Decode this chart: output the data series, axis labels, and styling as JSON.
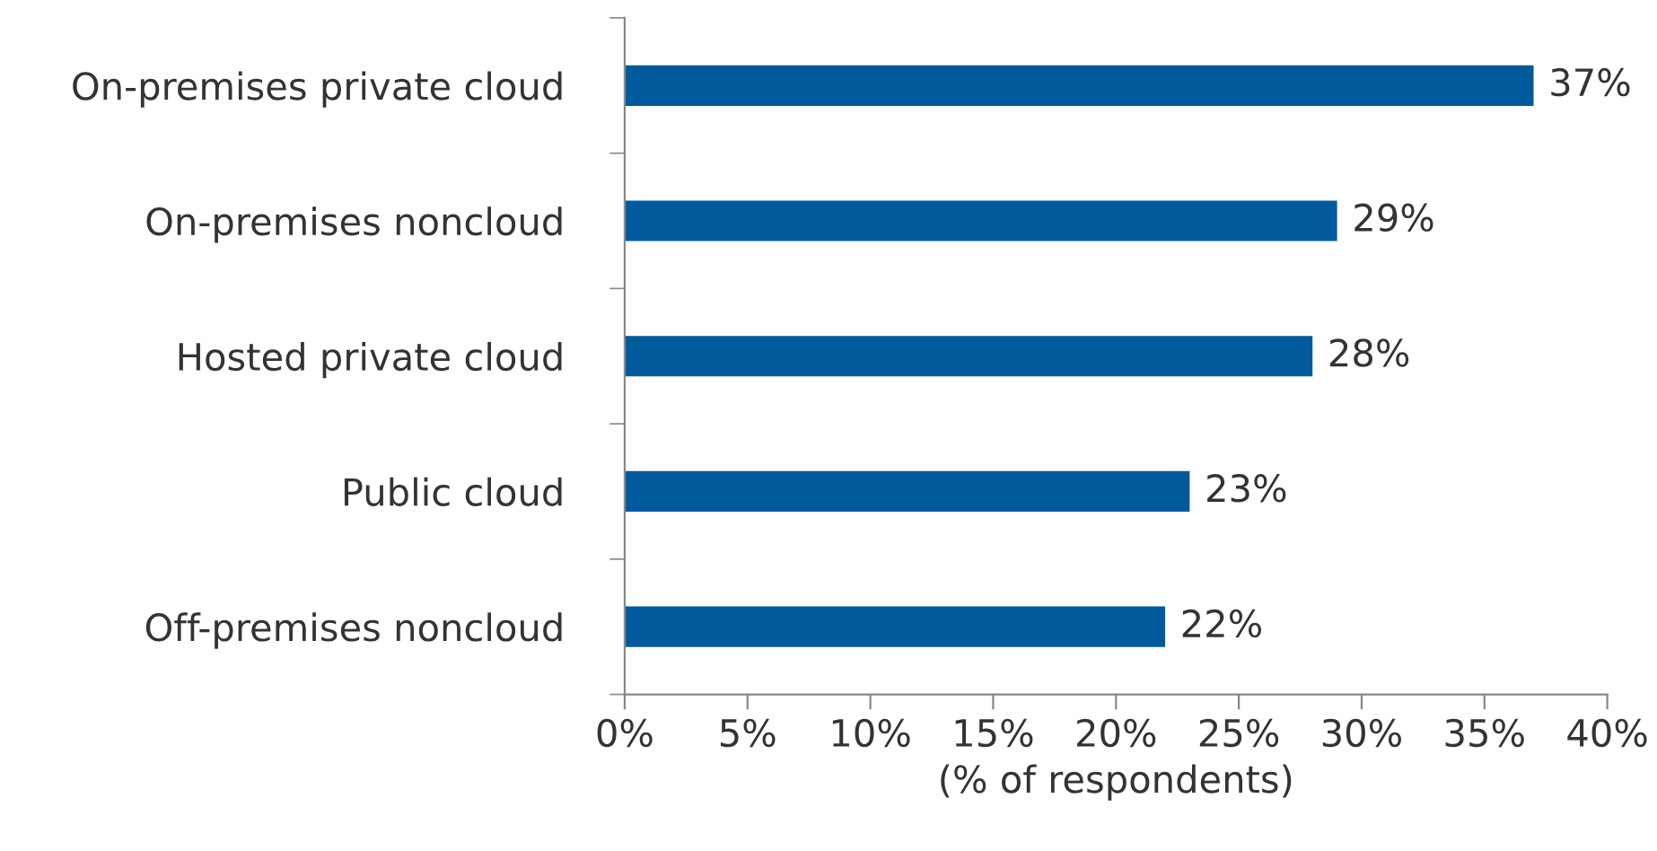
{
  "chart_data": {
    "type": "bar",
    "orientation": "horizontal",
    "xlabel": "(% of respondents)",
    "categories": [
      "On-premises private cloud",
      "On-premises noncloud",
      "Hosted private cloud",
      "Public cloud",
      "Off-premises noncloud"
    ],
    "values": [
      37,
      29,
      28,
      23,
      22
    ],
    "value_labels": [
      "37%",
      "29%",
      "28%",
      "23%",
      "22%"
    ],
    "color": "#005a9c",
    "xlim": [
      0,
      40
    ],
    "xticks": [
      {
        "value": 0,
        "label": "0%"
      },
      {
        "value": 5,
        "label": "5%"
      },
      {
        "value": 10,
        "label": "10%"
      },
      {
        "value": 15,
        "label": "15%"
      },
      {
        "value": 20,
        "label": "20%"
      },
      {
        "value": 25,
        "label": "25%"
      },
      {
        "value": 30,
        "label": "30%"
      },
      {
        "value": 35,
        "label": "35%"
      },
      {
        "value": 40,
        "label": "40%"
      }
    ],
    "grid": false,
    "legend": false
  }
}
